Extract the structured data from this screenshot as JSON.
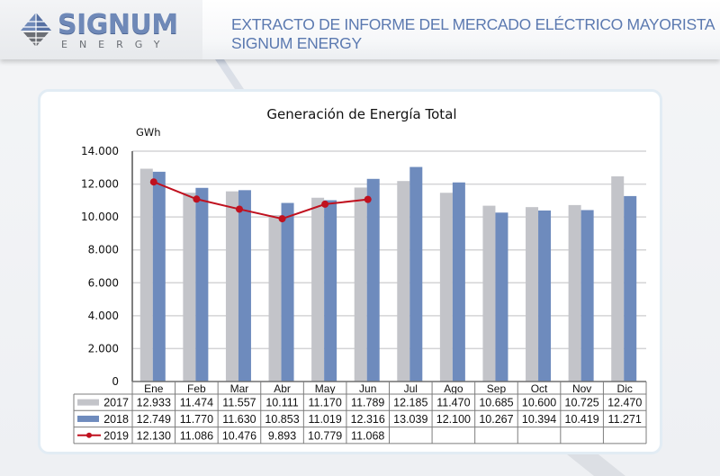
{
  "header": {
    "logo_name": "SIGNUM",
    "logo_sub": "ENERGY",
    "title_line1": "EXTRACTO DE INFORME DEL MERCADO ELÉCTRICO MAYORISTA",
    "title_line2": "SIGNUM ENERGY"
  },
  "colors": {
    "brand": "#5b79b0",
    "series_2017": "#c3c4c9",
    "series_2018": "#6e8bbd",
    "series_2019": "#c0111f"
  },
  "chart_data": {
    "type": "bar",
    "title": "Generación de Energía Total",
    "xlabel": "",
    "ylabel": "GWh",
    "ylim": [
      0,
      14000
    ],
    "yticks": [
      0,
      2000,
      4000,
      6000,
      8000,
      10000,
      12000,
      14000
    ],
    "ytick_labels": [
      "0",
      "2.000",
      "4.000",
      "6.000",
      "8.000",
      "10.000",
      "12.000",
      "14.000"
    ],
    "grid": true,
    "legend": "data-table-bottom",
    "categories": [
      "Ene",
      "Feb",
      "Mar",
      "Abr",
      "May",
      "Jun",
      "Jul",
      "Ago",
      "Sep",
      "Oct",
      "Nov",
      "Dic"
    ],
    "series": [
      {
        "name": "2017",
        "kind": "bar",
        "values": [
          12933,
          11474,
          11557,
          10111,
          11170,
          11789,
          12185,
          11470,
          10685,
          10600,
          10725,
          12470
        ],
        "labels": [
          "12.933",
          "11.474",
          "11.557",
          "10.111",
          "11.170",
          "11.789",
          "12.185",
          "11.470",
          "10.685",
          "10.600",
          "10.725",
          "12.470"
        ]
      },
      {
        "name": "2018",
        "kind": "bar",
        "values": [
          12749,
          11770,
          11630,
          10853,
          11019,
          12316,
          13039,
          12100,
          10267,
          10394,
          10419,
          11271
        ],
        "labels": [
          "12.749",
          "11.770",
          "11.630",
          "10.853",
          "11.019",
          "12.316",
          "13.039",
          "12.100",
          "10.267",
          "10.394",
          "10.419",
          "11.271"
        ]
      },
      {
        "name": "2019",
        "kind": "line",
        "values": [
          12130,
          11086,
          10476,
          9893,
          10779,
          11068,
          null,
          null,
          null,
          null,
          null,
          null
        ],
        "labels": [
          "12.130",
          "11.086",
          "10.476",
          "9.893",
          "10.779",
          "11.068",
          "",
          "",
          "",
          "",
          "",
          ""
        ]
      }
    ]
  }
}
